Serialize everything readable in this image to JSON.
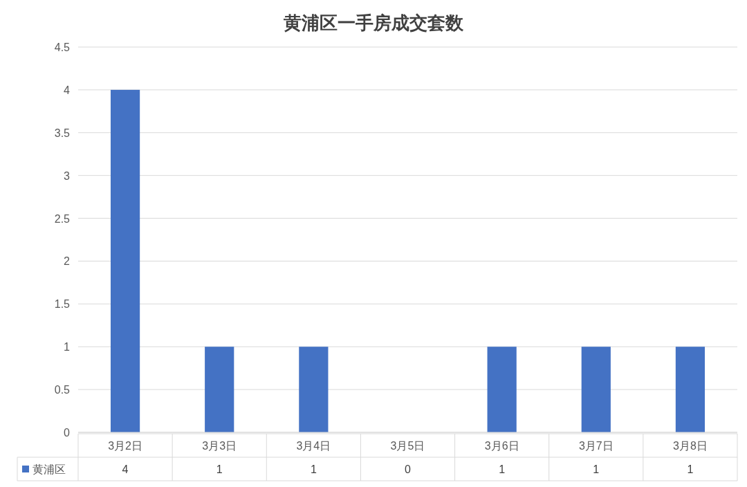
{
  "chart_data": {
    "type": "bar",
    "title": "黄浦区一手房成交套数",
    "categories": [
      "3月2日",
      "3月3日",
      "3月4日",
      "3月5日",
      "3月6日",
      "3月7日",
      "3月8日"
    ],
    "series": [
      {
        "name": "黄浦区",
        "color": "#4472c4",
        "values": [
          4,
          1,
          1,
          0,
          1,
          1,
          1
        ]
      }
    ],
    "ylim": [
      0,
      4.5
    ],
    "yticks": [
      0,
      0.5,
      1,
      1.5,
      2,
      2.5,
      3,
      3.5,
      4,
      4.5
    ],
    "grid": "y",
    "data_labels": true,
    "legend": "bottom"
  }
}
